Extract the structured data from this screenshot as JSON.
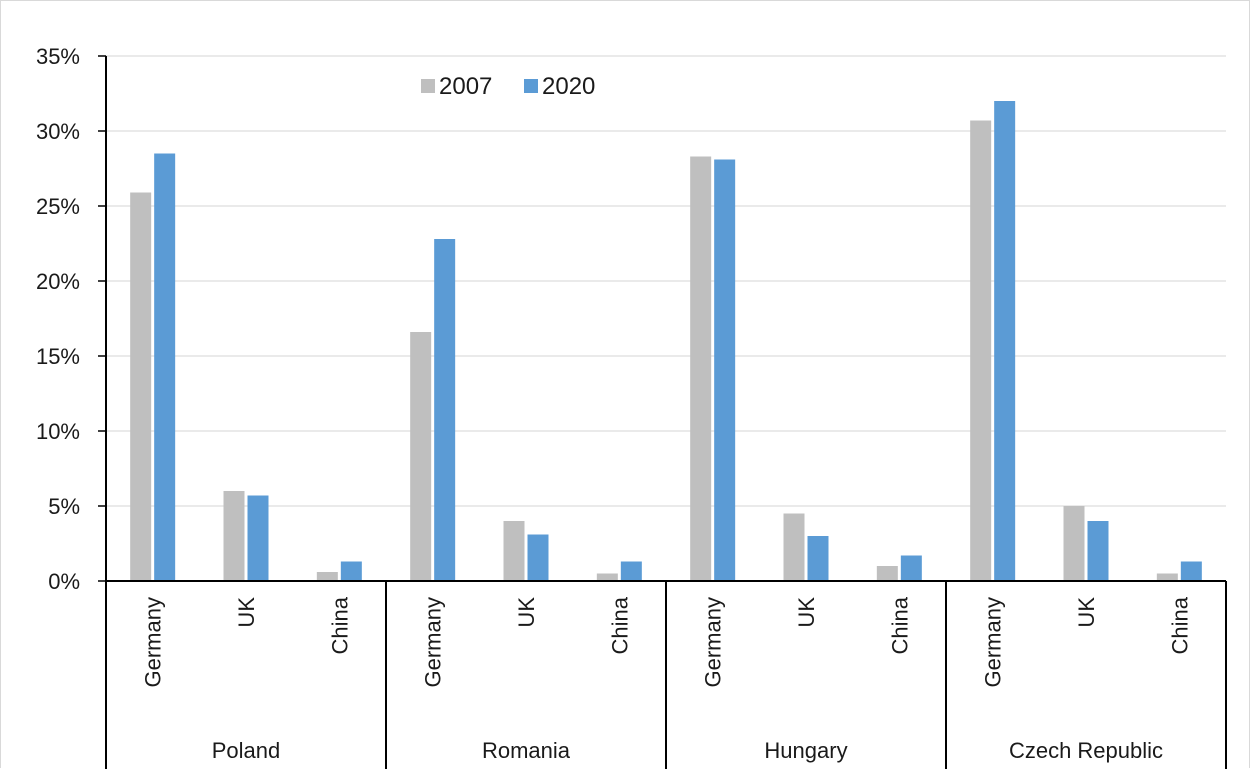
{
  "chart_data": {
    "type": "bar",
    "title": "",
    "xlabel": "",
    "ylabel": "",
    "ylim": [
      0,
      35
    ],
    "y_ticks": [
      "0%",
      "5%",
      "10%",
      "15%",
      "20%",
      "25%",
      "30%",
      "35%"
    ],
    "y_tick_values": [
      0,
      5,
      10,
      15,
      20,
      25,
      30,
      35
    ],
    "grid": true,
    "legend_position": "top-center",
    "groups": [
      "Poland",
      "Romania",
      "Hungary",
      "Czech Republic"
    ],
    "categories": [
      "Germany",
      "UK",
      "China"
    ],
    "series": [
      {
        "name": "2007",
        "color": "#bfbfbf",
        "values": [
          [
            25.9,
            6.0,
            0.6
          ],
          [
            16.6,
            4.0,
            0.5
          ],
          [
            28.3,
            4.5,
            1.0
          ],
          [
            30.7,
            5.0,
            0.5
          ]
        ]
      },
      {
        "name": "2020",
        "color": "#5b9bd5",
        "values": [
          [
            28.5,
            5.7,
            1.3
          ],
          [
            22.8,
            3.1,
            1.3
          ],
          [
            28.1,
            3.0,
            1.7
          ],
          [
            32.0,
            4.0,
            1.3
          ]
        ]
      }
    ]
  }
}
